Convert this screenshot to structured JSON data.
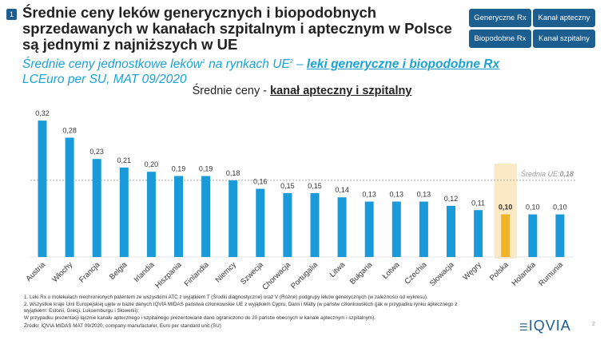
{
  "header": {
    "badge": "1",
    "title": "Średnie ceny leków generycznych i biopodobnych sprzedawanych w kanałach szpitalnym i aptecznym w Polsce są jednymi z najniższych w UE"
  },
  "nav": [
    "Generyczne Rx",
    "Kanał apteczny",
    "Biopodobne Rx",
    "Kanał szpitalny"
  ],
  "subtitle": {
    "part1": "Średnie ceny jednostkowe leków",
    "sup1": "1",
    "part2": " na rynkach UE",
    "sup2": "2",
    "part3": " – ",
    "bold": "leki generyczne i  biopodobne  Rx",
    "line2": "LCEuro per SU, MAT 09/2020"
  },
  "chart_title": {
    "prefix": "Średnie ceny - ",
    "bold": "kanał apteczny i szpitalny"
  },
  "chart_data": {
    "type": "bar",
    "categories": [
      "Austria",
      "Włochy",
      "Francja",
      "Belgia",
      "Irlandia",
      "Hiszpania",
      "Finlandia",
      "Niemcy",
      "Szwecja",
      "Chorwacja",
      "Portugalia",
      "Litwa",
      "Bułgaria",
      "Łotwa",
      "Czechia",
      "Słowacja",
      "Węgry",
      "Polska",
      "Holandia",
      "Rumunia"
    ],
    "values": [
      0.32,
      0.28,
      0.23,
      0.21,
      0.2,
      0.19,
      0.19,
      0.18,
      0.16,
      0.15,
      0.15,
      0.14,
      0.13,
      0.13,
      0.13,
      0.12,
      0.11,
      0.1,
      0.1,
      0.1
    ],
    "labels": [
      "0,32",
      "0,28",
      "0,23",
      "0,21",
      "0,20",
      "0,19",
      "0,19",
      "0,18",
      "0,16",
      "0,15",
      "0,15",
      "0,14",
      "0,13",
      "0,13",
      "0,13",
      "0,12",
      "0,11",
      "0,10",
      "0,10",
      "0,10"
    ],
    "highlight": "Polska",
    "reference_line": {
      "value": 0.18,
      "label": "Średnia UE:",
      "value_label": "0,18"
    },
    "colors": {
      "bar": "#1a9ad9",
      "highlight": "#f0b323",
      "highlight_band": "#fbe8c4"
    },
    "ylim": [
      0,
      0.33
    ],
    "grid": false
  },
  "footnotes": [
    "1.  Leki Rx o molekułach niechronionych patentem ze wszystkimi ATC z wyjątkiem T (Środki diagnostyczne) oraz V (Różne) podgrupy leków generycznych (w zależności od wykresu).",
    "2.  Wszystkie kraje Unii Europejskiej ujęte w bazie danych IQVIA MIDAS państwa członkowskie UE z wyjątkiem Cypru, Danii i Malty (w państw członkowskich (jak w przypadku rynku aptecznego z",
    "     wyjątkiem: Estonii, Grecji, Luksemburgu i Słowenii);",
    "     W przypadku prezentacji łącznie kanału aptecznego i szpitalnego prezentowane dane ograniczono do 20 państw obecnych w kanale aptecznym i szpitalnym)."
  ],
  "source": "Źródło: IQVIA MIDAS MAT 09/2020, company-manufacturer, Euro per standard unit (SU)",
  "logo": "IQVIA",
  "page": "2"
}
